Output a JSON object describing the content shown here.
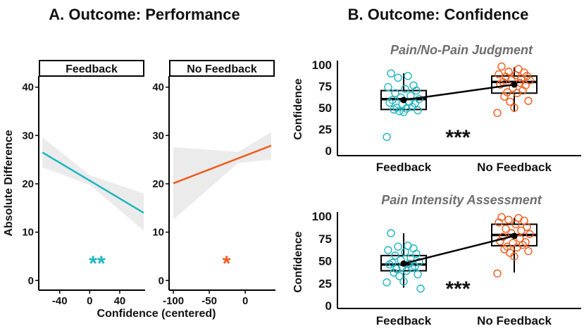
{
  "panel_a": {
    "title": "A. Outcome: Performance",
    "ylabel": "Absolute Difference",
    "xlabel": "Confidence (centered)"
  },
  "panel_b": {
    "title": "B. Outcome: Confidence"
  },
  "colors": {
    "feedback": "#1fb5c2",
    "no_feedback": "#f05a1a",
    "ribbon": "#ebebeb",
    "axis": "#000000",
    "subtitle": "#6e6e6e"
  },
  "chart_data": [
    {
      "id": "performance-feedback",
      "type": "line",
      "facet": "Feedback",
      "xlabel": "Confidence (centered)",
      "ylabel": "Absolute Difference",
      "xlim": [
        -67,
        72
      ],
      "ylim": [
        -2,
        42
      ],
      "xticks": [
        -40,
        0,
        40
      ],
      "yticks": [
        0,
        10,
        20,
        30,
        40
      ],
      "fit": {
        "x": [
          -63,
          72
        ],
        "y": [
          26.5,
          14.0
        ]
      },
      "ribbon": {
        "x": [
          -63,
          0,
          72
        ],
        "upper": [
          29.6,
          21.8,
          18.0
        ],
        "lower": [
          23.4,
          19.8,
          10.3
        ]
      },
      "annotation": "**",
      "annotation_pos": [
        10,
        3.8
      ],
      "color": "#1fb5c2"
    },
    {
      "id": "performance-no-feedback",
      "type": "line",
      "facet": "No Feedback",
      "xlabel": "Confidence (centered)",
      "ylabel": "",
      "xlim": [
        -105,
        40
      ],
      "ylim": [
        -2,
        42
      ],
      "xticks": [
        -100,
        -50,
        0
      ],
      "yticks": [
        0,
        10,
        20,
        30,
        40
      ],
      "fit": {
        "x": [
          -100,
          36
        ],
        "y": [
          20.1,
          27.9
        ]
      },
      "ribbon": {
        "x": [
          -100,
          -10,
          36
        ],
        "upper": [
          27.6,
          26.6,
          30.7
        ],
        "lower": [
          12.6,
          24.3,
          25.0
        ]
      },
      "annotation": "*",
      "annotation_pos": [
        -26,
        3.8
      ],
      "color": "#f05a1a"
    },
    {
      "id": "confidence-pain-judgment",
      "type": "box",
      "title": "Pain/No-Pain Judgment",
      "ylabel": "Confidence",
      "categories": [
        "Feedback",
        "No Feedback"
      ],
      "ylim": [
        0,
        100
      ],
      "yticks": [
        0,
        25,
        50,
        75,
        100
      ],
      "boxes": [
        {
          "category": "Feedback",
          "q1": 48,
          "median": 60,
          "q3": 70,
          "whisker_low": 48,
          "whisker_high": 90,
          "mean": 59
        },
        {
          "category": "No Feedback",
          "q1": 67,
          "median": 80,
          "q3": 87,
          "whisker_low": 45,
          "whisker_high": 97,
          "mean": 77
        }
      ],
      "points": [
        {
          "category": "Feedback",
          "values": [
            90,
            87,
            85,
            76,
            74,
            72,
            70,
            67,
            64,
            62,
            60,
            59,
            57,
            56,
            55,
            54,
            51,
            50,
            49,
            48,
            47,
            46,
            45,
            16
          ],
          "color": "#1fb5c2"
        },
        {
          "category": "No Feedback",
          "values": [
            98,
            95,
            92,
            91,
            89,
            88,
            87,
            86,
            84,
            83,
            82,
            80,
            79,
            77,
            76,
            73,
            70,
            68,
            67,
            63,
            58,
            57,
            50,
            44
          ],
          "color": "#f05a1a"
        }
      ],
      "annotation": "***"
    },
    {
      "id": "confidence-pain-intensity",
      "type": "box",
      "title": "Pain Intensity Assessment",
      "ylabel": "Confidence",
      "categories": [
        "Feedback",
        "No Feedback"
      ],
      "ylim": [
        0,
        100
      ],
      "yticks": [
        0,
        25,
        50,
        75,
        100
      ],
      "boxes": [
        {
          "category": "Feedback",
          "q1": 39,
          "median": 46,
          "q3": 56,
          "whisker_low": 20,
          "whisker_high": 81,
          "mean": 47
        },
        {
          "category": "No Feedback",
          "q1": 67,
          "median": 79,
          "q3": 91,
          "whisker_low": 37,
          "whisker_high": 98,
          "mean": 78
        }
      ],
      "points": [
        {
          "category": "Feedback",
          "values": [
            81,
            67,
            66,
            64,
            62,
            60,
            58,
            56,
            53,
            51,
            49,
            48,
            47,
            46,
            44,
            43,
            42,
            41,
            39,
            37,
            35,
            33,
            27,
            26,
            19
          ],
          "color": "#1fb5c2"
        },
        {
          "category": "No Feedback",
          "values": [
            99,
            98,
            96,
            95,
            93,
            91,
            88,
            86,
            84,
            81,
            80,
            77,
            75,
            72,
            71,
            70,
            68,
            66,
            65,
            63,
            61,
            59,
            55,
            36
          ],
          "color": "#f05a1a"
        }
      ],
      "annotation": "***"
    }
  ]
}
